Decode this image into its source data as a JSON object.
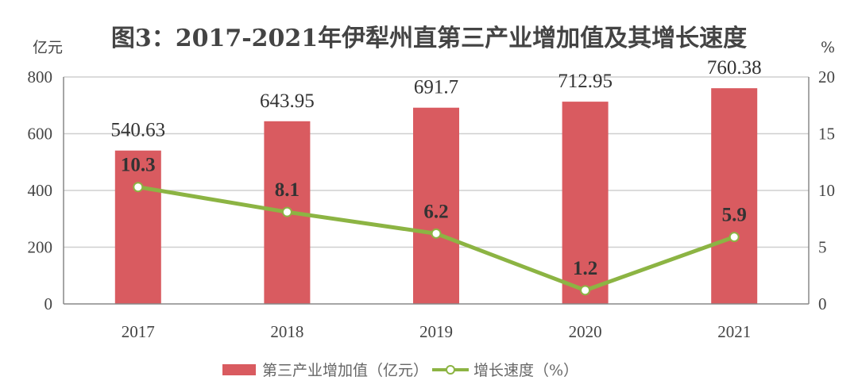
{
  "chart_data": {
    "type": "bar+line",
    "title": "图3：2017-2021年伊犁州直第三产业增加值及其增长速度",
    "categories": [
      "2017",
      "2018",
      "2019",
      "2020",
      "2021"
    ],
    "left_axis": {
      "unit": "亿元",
      "range": [
        0,
        800
      ],
      "ticks": [
        0,
        200,
        400,
        600,
        800
      ]
    },
    "right_axis": {
      "unit": "%",
      "range": [
        0,
        20
      ],
      "ticks": [
        0,
        5,
        10,
        15,
        20
      ]
    },
    "grid": true,
    "legend_placement": "bottom",
    "series": [
      {
        "name": "第三产业增加值（亿元）",
        "type": "bar",
        "axis": "left",
        "color": "#d95b60",
        "values": [
          540.63,
          643.95,
          691.7,
          712.95,
          760.38
        ],
        "labels": [
          "540.63",
          "643.95",
          "691.7",
          "712.95",
          "760.38"
        ]
      },
      {
        "name": "增长速度（%）",
        "type": "line",
        "axis": "right",
        "color": "#8cb443",
        "values": [
          10.3,
          8.1,
          6.2,
          1.2,
          5.9
        ],
        "labels": [
          "10.3",
          "8.1",
          "6.2",
          "1.2",
          "5.9"
        ]
      }
    ]
  }
}
